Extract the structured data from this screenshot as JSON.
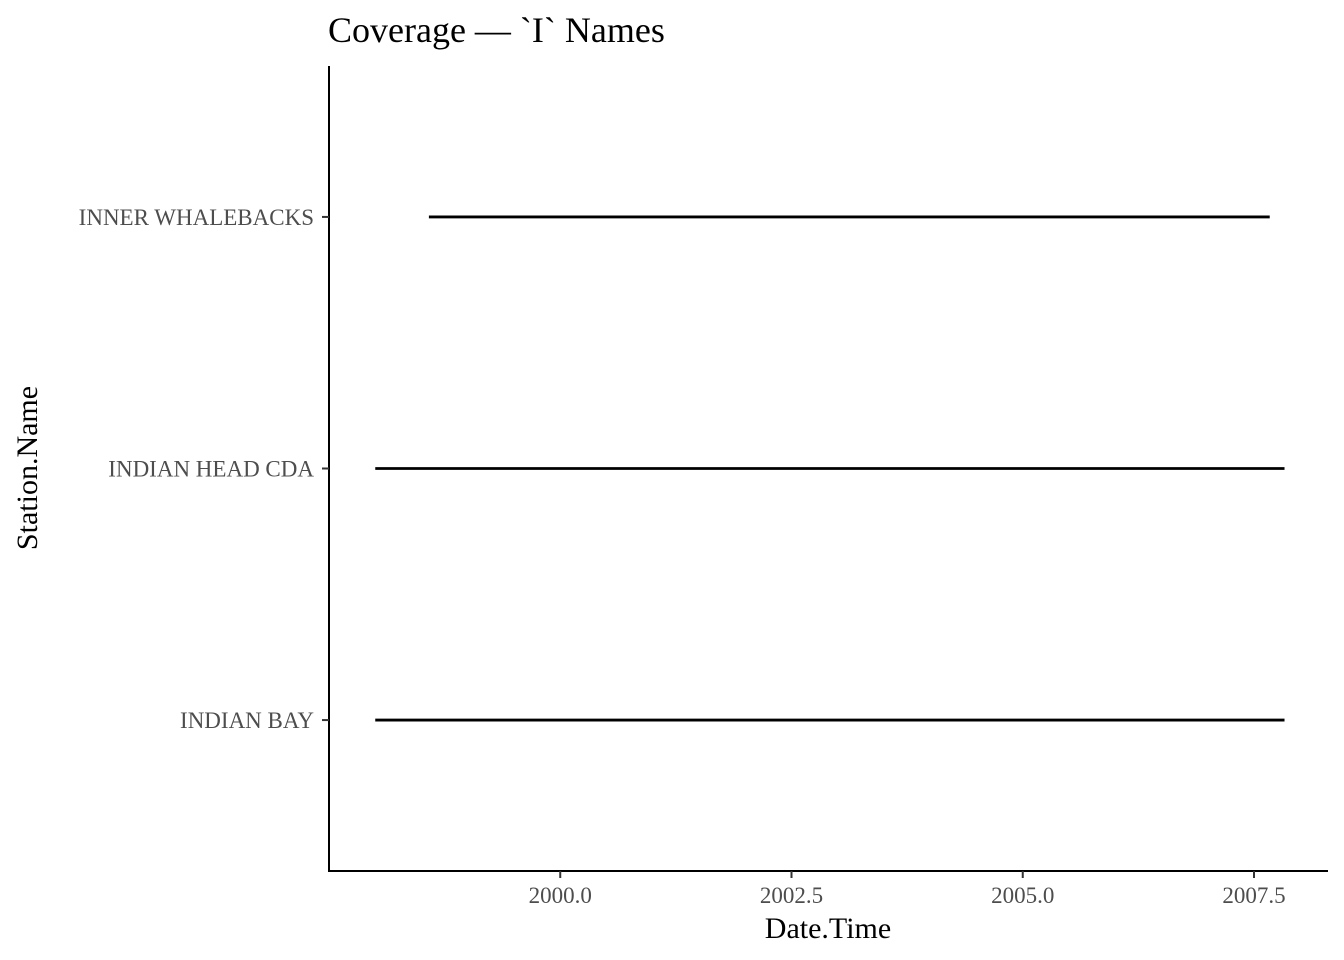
{
  "chart_data": {
    "type": "line",
    "title": "Coverage — `I` Names",
    "xlabel": "Date.Time",
    "ylabel": "Station.Name",
    "xlim": [
      1997.5,
      2008.3
    ],
    "x_ticks": [
      2000.0,
      2002.5,
      2005.0,
      2007.5
    ],
    "x_tick_labels": [
      "2000.0",
      "2002.5",
      "2005.0",
      "2007.5"
    ],
    "categories": [
      "INDIAN BAY",
      "INDIAN HEAD CDA",
      "INNER WHALEBACKS"
    ],
    "series": [
      {
        "category": "INDIAN BAY",
        "start": 1998.0,
        "end": 2007.83
      },
      {
        "category": "INDIAN HEAD CDA",
        "start": 1998.0,
        "end": 2007.83
      },
      {
        "category": "INNER WHALEBACKS",
        "start": 1998.58,
        "end": 2007.67
      }
    ],
    "line_color": "#000000",
    "grid": false,
    "legend": "none"
  }
}
